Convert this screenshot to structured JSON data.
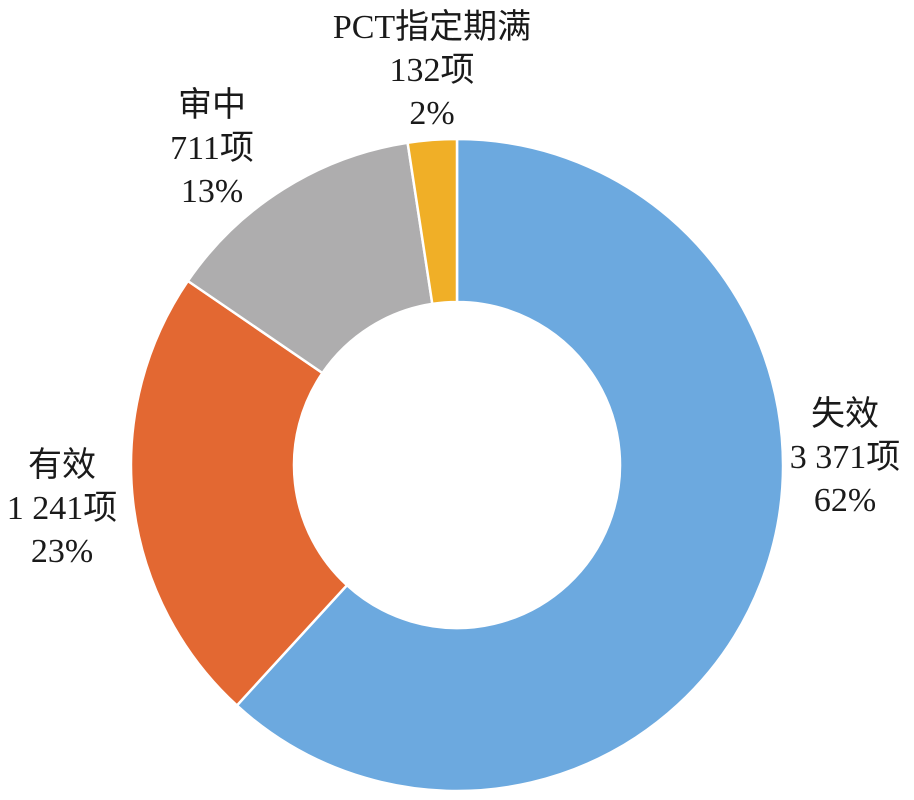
{
  "chart_data": {
    "type": "pie",
    "variant": "donut",
    "slices": [
      {
        "name": "失效",
        "count_label": "3 371项",
        "percent_label": "62%",
        "value": 3371,
        "color": "#6CA9DF"
      },
      {
        "name": "有效",
        "count_label": "1 241项",
        "percent_label": "23%",
        "value": 1241,
        "color": "#E36832"
      },
      {
        "name": "审中",
        "count_label": "711项",
        "percent_label": "13%",
        "value": 711,
        "color": "#AEADAE"
      },
      {
        "name": "PCT指定期满",
        "count_label": "132项",
        "percent_label": "2%",
        "value": 132,
        "color": "#F0AF27"
      }
    ],
    "legend": "none"
  }
}
